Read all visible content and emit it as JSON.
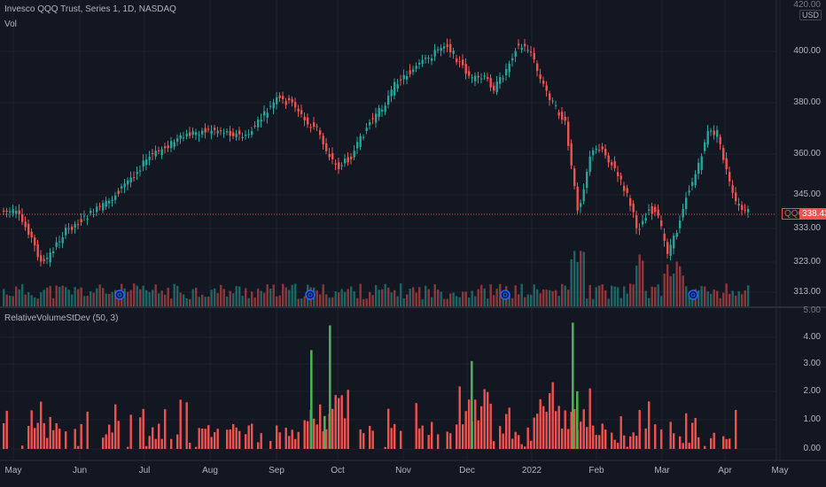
{
  "header": {
    "title": "Invesco QQQ Trust, Series 1, 1D, NASDAQ",
    "volume_label": "Vol"
  },
  "price_axis": {
    "currency": "USD",
    "ticks": [
      "400.00",
      "380.00",
      "360.00",
      "345.00",
      "333.00",
      "323.00",
      "313.00"
    ],
    "top_partial": "420.00"
  },
  "last_price": {
    "symbol": "QQQ",
    "value": "338.43"
  },
  "indicator": {
    "name": "RelativeVolumeStDev (50, 3)",
    "ticks": [
      "4.00",
      "3.00",
      "2.00",
      "1.00",
      "0.00"
    ],
    "top_partial": "5.00"
  },
  "time_axis": {
    "labels": [
      "May",
      "Jun",
      "Jul",
      "Aug",
      "Sep",
      "Oct",
      "Nov",
      "Dec",
      "2022",
      "Feb",
      "Mar",
      "Apr",
      "May"
    ]
  },
  "colors": {
    "background": "#131722",
    "up": "#26a69a",
    "down": "#ef5350",
    "highlight": "#4caf50",
    "grid": "#1e222d"
  }
}
